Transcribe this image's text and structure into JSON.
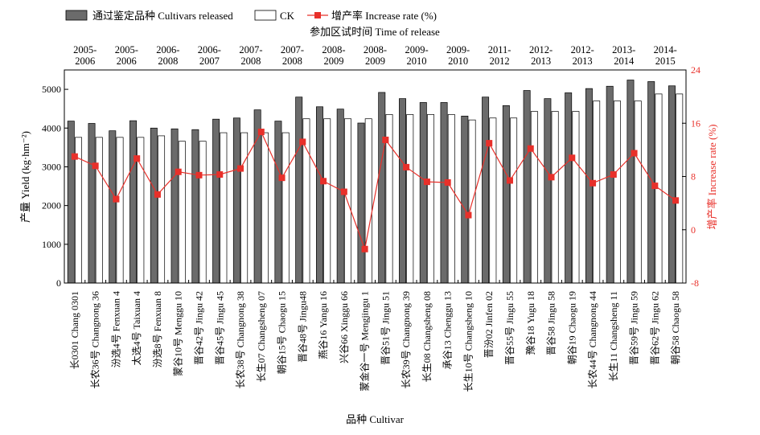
{
  "chart_data": {
    "type": "bar",
    "xlabel": "品种 Cultivar",
    "ylabel_left": "产量 Yield (kg·hm⁻²)",
    "ylabel_right": "增产率 Increase rate (%)",
    "top_axis_title": "参加区试时间 Time of release",
    "ylim_left": [
      0,
      5500
    ],
    "yticks_left": [
      "0",
      "1000",
      "2000",
      "3000",
      "4000",
      "5000"
    ],
    "ylim_right": [
      -8,
      24
    ],
    "yticks_right": [
      "-8",
      "0",
      "8",
      "16",
      "24"
    ],
    "legend_position": "top",
    "legend": [
      {
        "label": "通过鉴定品种 Cultivars released"
      },
      {
        "label": "CK"
      },
      {
        "label": "增产率 Increase rate (%)"
      }
    ],
    "categories": [
      "长0301 Chang 0301",
      "长农36号 Changnong 36",
      "汾选4号 Fenxuan 4",
      "太选4号 Taixuan 4",
      "汾选8号 Fenxuan 8",
      "蒙谷10号 Menggu 10",
      "晋谷42号 Jingu 42",
      "晋谷45号 Jingu 45",
      "长农38号 Changnong 38",
      "长生07 Changsheng 07",
      "朝谷15号 Chaogu 15",
      "晋谷48号 Jingu48",
      "燕谷16 Yangu 16",
      "兴谷66 Xinggu 66",
      "蒙金谷一号 Mengjingu 1",
      "晋谷51号 Jingu 51",
      "长农39号 Changnong 39",
      "长生08 Changsheng 08",
      "承谷13 Chenggu 13",
      "长生10号 Changsheng 10",
      "晋汾02 Jinfen 02",
      "晋谷55号 Jingu 55",
      "豫谷18 Yugu 18",
      "晋谷58 Jingu 58",
      "朝谷19 Chaogu 19",
      "长农44号 Changnong 44",
      "长生11 Changsheng 11",
      "晋谷59号 Jingu 59",
      "晋谷62号 Jingu 62",
      "朝谷58 Chaogu 58"
    ],
    "periods": [
      {
        "label": "2005-\n2006",
        "span": 2
      },
      {
        "label": "2005-\n2006",
        "span": 2
      },
      {
        "label": "2006-\n2008",
        "span": 2
      },
      {
        "label": "2006-\n2007",
        "span": 2
      },
      {
        "label": "2007-\n2008",
        "span": 2
      },
      {
        "label": "2007-\n2008",
        "span": 2
      },
      {
        "label": "2008-\n2009",
        "span": 2
      },
      {
        "label": "2008-\n2009",
        "span": 2
      },
      {
        "label": "2009-\n2010",
        "span": 2
      },
      {
        "label": "2009-\n2010",
        "span": 2
      },
      {
        "label": "2011-\n2012",
        "span": 2
      },
      {
        "label": "2012-\n2013",
        "span": 2
      },
      {
        "label": "2012-\n2013",
        "span": 2
      },
      {
        "label": "2013-\n2014",
        "span": 2
      },
      {
        "label": "2014-\n2015",
        "span": 2
      }
    ],
    "series": [
      {
        "name": "通过鉴定品种 Cultivars released",
        "axis": "left",
        "type": "bar",
        "color": "#6b6b6b",
        "values": [
          4180,
          4120,
          3930,
          4190,
          4000,
          3980,
          3960,
          4230,
          4260,
          4470,
          4180,
          4800,
          4550,
          4490,
          4130,
          4920,
          4760,
          4660,
          4660,
          4310,
          4800,
          4580,
          4970,
          4760,
          4910,
          5020,
          5080,
          5240,
          5200,
          5090
        ]
      },
      {
        "name": "CK",
        "axis": "left",
        "type": "bar",
        "color": "#ffffff",
        "values": [
          3760,
          3760,
          3760,
          3760,
          3800,
          3660,
          3660,
          3880,
          3880,
          3880,
          3880,
          4240,
          4240,
          4240,
          4240,
          4350,
          4350,
          4350,
          4350,
          4210,
          4260,
          4260,
          4430,
          4430,
          4430,
          4700,
          4700,
          4700,
          4880,
          4880
        ]
      },
      {
        "name": "增产率 Increase rate (%)",
        "axis": "right",
        "type": "line",
        "color": "#e8302a",
        "values": [
          11.0,
          9.6,
          4.6,
          10.7,
          5.3,
          8.7,
          8.2,
          8.3,
          9.2,
          14.7,
          7.8,
          13.2,
          7.3,
          5.7,
          -2.9,
          13.5,
          9.4,
          7.2,
          7.1,
          2.2,
          13.0,
          7.4,
          12.2,
          7.9,
          10.8,
          7.0,
          8.3,
          11.5,
          6.6,
          4.4
        ]
      }
    ]
  }
}
